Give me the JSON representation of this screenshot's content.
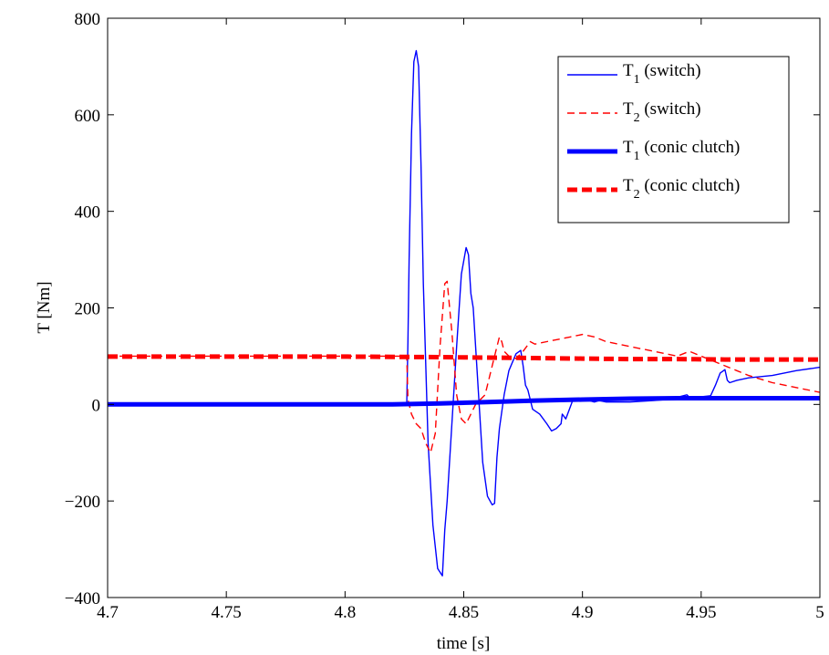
{
  "chart_data": {
    "type": "line",
    "xlabel": "time [s]",
    "ylabel": "T [Nm]",
    "xlim": [
      4.7,
      5.0
    ],
    "ylim": [
      -400,
      800
    ],
    "xticks": [
      "4.7",
      "4.75",
      "4.8",
      "4.85",
      "4.9",
      "4.95",
      "5"
    ],
    "yticks": [
      "−400",
      "−200",
      "0",
      "200",
      "400",
      "600",
      "800"
    ],
    "xtick_values": [
      4.7,
      4.75,
      4.8,
      4.85,
      4.9,
      4.95,
      5.0
    ],
    "ytick_values": [
      -400,
      -200,
      0,
      200,
      400,
      600,
      800
    ],
    "grid": false,
    "legend_position": "top-right",
    "series": [
      {
        "name_main": "T",
        "name_sub": "1",
        "name_rest": " (switch)",
        "color": "#0000ff",
        "style": "solid-thin",
        "x": [
          4.7,
          4.8,
          4.826,
          4.8265,
          4.827,
          4.828,
          4.829,
          4.83,
          4.831,
          4.832,
          4.833,
          4.835,
          4.837,
          4.839,
          4.841,
          4.842,
          4.843,
          4.845,
          4.847,
          4.849,
          4.851,
          4.852,
          4.853,
          4.854,
          4.856,
          4.858,
          4.86,
          4.862,
          4.863,
          4.864,
          4.865,
          4.867,
          4.869,
          4.872,
          4.874,
          4.875,
          4.876,
          4.877,
          4.879,
          4.882,
          4.885,
          4.887,
          4.889,
          4.891,
          4.8915,
          4.893,
          4.896,
          4.9,
          4.905,
          4.907,
          4.91,
          4.92,
          4.93,
          4.935,
          4.94,
          4.944,
          4.945,
          4.95,
          4.954,
          4.956,
          4.958,
          4.96,
          4.961,
          4.962,
          4.965,
          4.97,
          4.98,
          4.99,
          5.0
        ],
        "y": [
          0,
          0,
          0,
          130,
          300,
          560,
          710,
          733,
          700,
          500,
          250,
          -80,
          -250,
          -340,
          -355,
          -260,
          -200,
          -40,
          120,
          270,
          325,
          310,
          230,
          200,
          40,
          -120,
          -190,
          -208,
          -205,
          -110,
          -50,
          20,
          70,
          105,
          112,
          80,
          40,
          30,
          -10,
          -20,
          -40,
          -55,
          -50,
          -40,
          -20,
          -30,
          10,
          12,
          5,
          8,
          5,
          5,
          8,
          10,
          15,
          20,
          15,
          16,
          18,
          40,
          65,
          72,
          50,
          45,
          50,
          55,
          60,
          70,
          77
        ]
      },
      {
        "name_main": "T",
        "name_sub": "2",
        "name_rest": " (switch)",
        "color": "#ff0000",
        "style": "dashed-thin",
        "x": [
          4.7,
          4.826,
          4.8265,
          4.828,
          4.83,
          4.832,
          4.834,
          4.836,
          4.838,
          4.84,
          4.842,
          4.843,
          4.845,
          4.847,
          4.849,
          4.851,
          4.853,
          4.855,
          4.857,
          4.859,
          4.861,
          4.863,
          4.865,
          4.866,
          4.867,
          4.869,
          4.872,
          4.875,
          4.878,
          4.88,
          4.885,
          4.89,
          4.895,
          4.9,
          4.905,
          4.91,
          4.92,
          4.93,
          4.94,
          4.945,
          4.95,
          4.955,
          4.96,
          4.965,
          4.97,
          4.98,
          4.99,
          5.0
        ],
        "y": [
          100,
          100,
          10,
          -20,
          -40,
          -50,
          -80,
          -100,
          -60,
          120,
          250,
          255,
          150,
          20,
          -30,
          -40,
          -20,
          0,
          10,
          20,
          60,
          100,
          140,
          130,
          110,
          100,
          95,
          110,
          130,
          125,
          130,
          135,
          140,
          145,
          140,
          130,
          120,
          110,
          100,
          110,
          100,
          90,
          80,
          70,
          60,
          45,
          35,
          25
        ]
      },
      {
        "name_main": "T",
        "name_sub": "1",
        "name_rest": " (conic clutch)",
        "color": "#0000ff",
        "style": "solid-thick",
        "x": [
          4.7,
          4.82,
          4.84,
          4.86,
          4.88,
          4.9,
          4.92,
          4.94,
          4.96,
          5.0
        ],
        "y": [
          0,
          0,
          2,
          5,
          8,
          10,
          12,
          13,
          13,
          13
        ]
      },
      {
        "name_main": "T",
        "name_sub": "2",
        "name_rest": " (conic clutch)",
        "color": "#ff0000",
        "style": "dashed-thick",
        "x": [
          4.7,
          4.8,
          4.84,
          4.86,
          4.88,
          4.9,
          4.92,
          4.94,
          4.96,
          5.0
        ],
        "y": [
          99,
          99,
          98,
          97,
          96,
          95,
          94,
          94,
          93,
          93
        ]
      }
    ]
  }
}
